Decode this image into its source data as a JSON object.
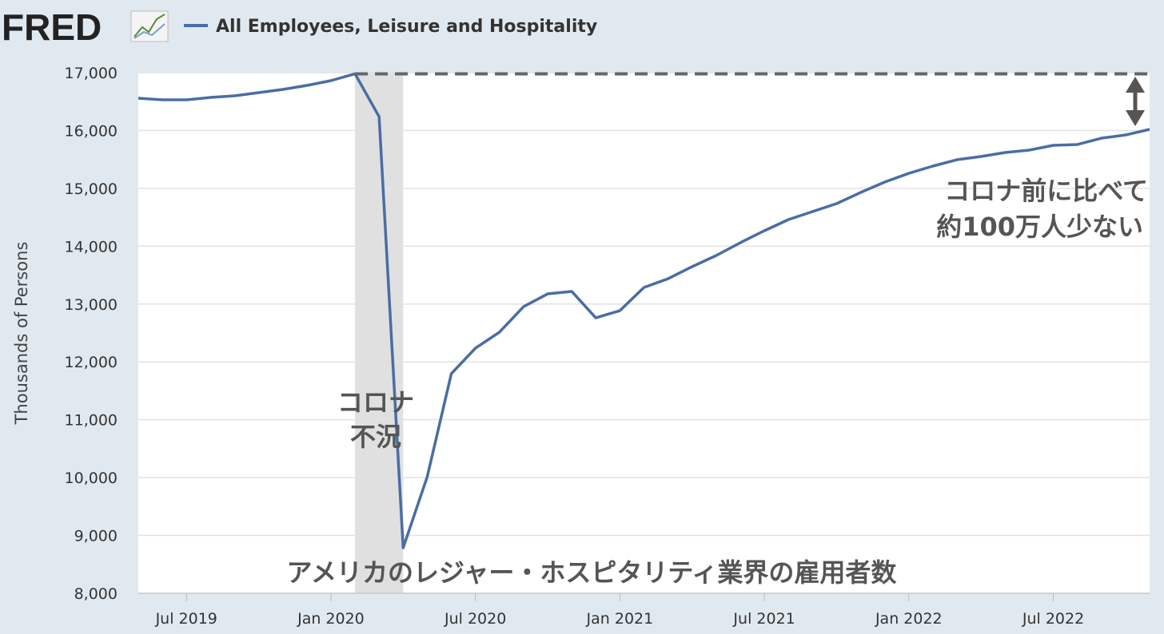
{
  "chart_data": {
    "type": "line",
    "brand": "FRED",
    "ylabel": "Thousands of Persons",
    "x": [
      "2019-05",
      "2019-06",
      "2019-07",
      "2019-08",
      "2019-09",
      "2019-10",
      "2019-11",
      "2019-12",
      "2020-01",
      "2020-02",
      "2020-03",
      "2020-04",
      "2020-05",
      "2020-06",
      "2020-07",
      "2020-08",
      "2020-09",
      "2020-10",
      "2020-11",
      "2020-12",
      "2021-01",
      "2021-02",
      "2021-03",
      "2021-04",
      "2021-05",
      "2021-06",
      "2021-07",
      "2021-08",
      "2021-09",
      "2021-10",
      "2021-11",
      "2021-12",
      "2022-01",
      "2022-02",
      "2022-03",
      "2022-04",
      "2022-05",
      "2022-06",
      "2022-07",
      "2022-08",
      "2022-09",
      "2022-10",
      "2022-11"
    ],
    "series": [
      {
        "name": "All Employees, Leisure and Hospitality",
        "color": "#4a6da4",
        "values": [
          16558,
          16530,
          16530,
          16572,
          16600,
          16655,
          16710,
          16779,
          16862,
          16980,
          16240,
          8786,
          10015,
          11796,
          12237,
          12514,
          12955,
          13176,
          13218,
          12762,
          12886,
          13287,
          13438,
          13646,
          13839,
          14060,
          14267,
          14460,
          14598,
          14736,
          14929,
          15109,
          15260,
          15385,
          15495,
          15551,
          15620,
          15661,
          15744,
          15758,
          15868,
          15923,
          16020
        ]
      }
    ],
    "xlim": [
      "2019-05",
      "2022-11"
    ],
    "xticks": [
      {
        "value": "2019-07",
        "label": "Jul 2019"
      },
      {
        "value": "2020-01",
        "label": "Jan 2020"
      },
      {
        "value": "2020-07",
        "label": "Jul 2020"
      },
      {
        "value": "2021-01",
        "label": "Jan 2021"
      },
      {
        "value": "2021-07",
        "label": "Jul 2021"
      },
      {
        "value": "2022-01",
        "label": "Jan 2022"
      },
      {
        "value": "2022-07",
        "label": "Jul 2022"
      }
    ],
    "ylim": [
      8000,
      17000
    ],
    "yticks": [
      {
        "value": 8000,
        "label": "8,000"
      },
      {
        "value": 9000,
        "label": "9,000"
      },
      {
        "value": 10000,
        "label": "10,000"
      },
      {
        "value": 11000,
        "label": "11,000"
      },
      {
        "value": 12000,
        "label": "12,000"
      },
      {
        "value": 13000,
        "label": "13,000"
      },
      {
        "value": 14000,
        "label": "14,000"
      },
      {
        "value": 15000,
        "label": "15,000"
      },
      {
        "value": 16000,
        "label": "16,000"
      },
      {
        "value": 17000,
        "label": "17,000"
      }
    ],
    "grid": true,
    "recession": [
      "2020-02",
      "2020-04"
    ],
    "annotations": {
      "recession_label": [
        "コロナ",
        "不況"
      ],
      "gap_label": [
        "コロナ前に比べて",
        "約100万人少ない"
      ],
      "caption": "アメリカのレジャー・ホスピタリティ業界の雇用者数"
    }
  }
}
